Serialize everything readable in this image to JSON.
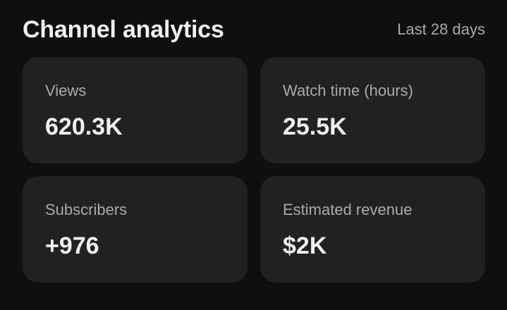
{
  "header": {
    "title": "Channel analytics",
    "period": "Last 28 days"
  },
  "metrics": [
    {
      "label": "Views",
      "value": "620.3K"
    },
    {
      "label": "Watch time (hours)",
      "value": "25.5K"
    },
    {
      "label": "Subscribers",
      "value": "+976"
    },
    {
      "label": "Estimated revenue",
      "value": "$2K"
    }
  ],
  "colors": {
    "background": "#0f0f0f",
    "card": "#212121",
    "label": "#aaaaaa",
    "value": "#f1f1f1"
  }
}
